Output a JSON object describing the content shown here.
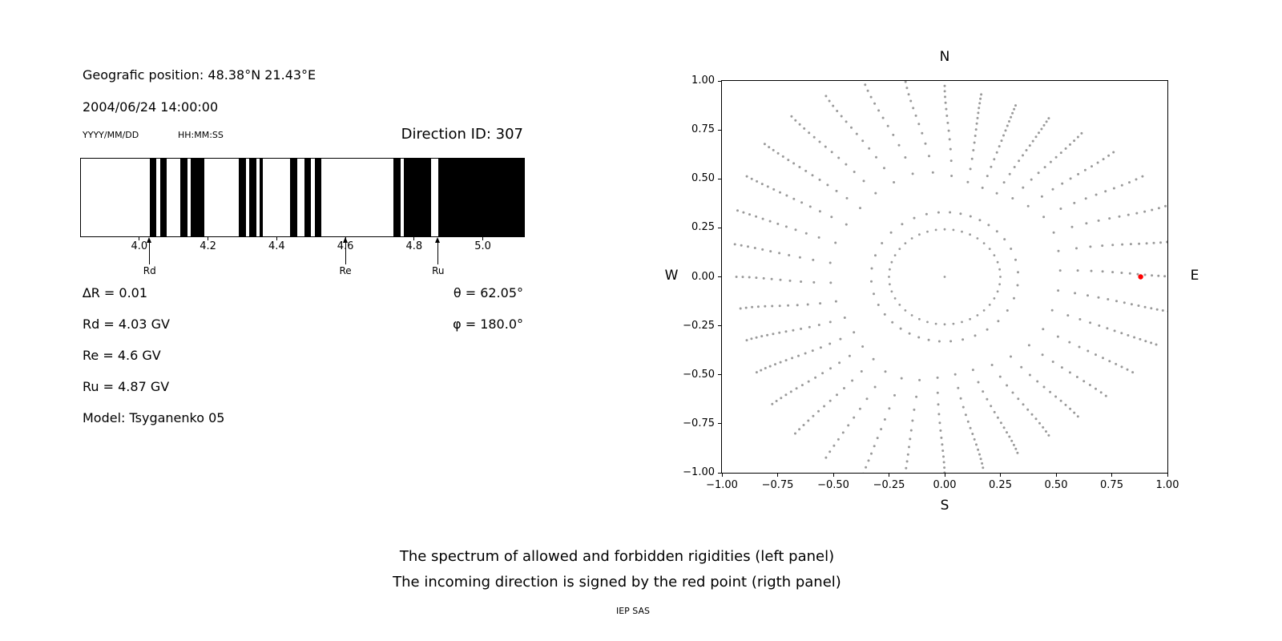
{
  "header": {
    "geographic_position": "Geografic position: 48.38°N 21.43°E",
    "datetime": "2004/06/24 14:00:00",
    "date_format": "YYYY/MM/DD",
    "time_format": "HH:MM:SS",
    "direction_id": "Direction ID: 307"
  },
  "parameters": {
    "delta_r": "∆R = 0.01",
    "rd": "Rd = 4.03 GV",
    "re": "Re = 4.6 GV",
    "ru": "Ru = 4.87 GV",
    "model": "Model: Tsyganenko 05",
    "theta": "θ = 62.05°",
    "phi": "φ = 180.0°"
  },
  "caption": {
    "line1": "The spectrum of allowed and forbidden rigidities (left panel)",
    "line2": "The incoming direction is signed by the red point (rigth panel)",
    "credit": "IEP SAS"
  },
  "chart_data": [
    {
      "type": "bar",
      "name": "rigidity_spectrum_barcode",
      "black_means": "allowed rigidity bands (white = forbidden)",
      "xlim": [
        3.83,
        5.12
      ],
      "xticks": [
        4.0,
        4.2,
        4.4,
        4.6,
        4.8,
        5.0
      ],
      "delta_r_gv": 0.01,
      "black_intervals": [
        [
          4.03,
          4.05
        ],
        [
          4.06,
          4.08
        ],
        [
          4.12,
          4.14
        ],
        [
          4.15,
          4.19
        ],
        [
          4.29,
          4.31
        ],
        [
          4.32,
          4.34
        ],
        [
          4.35,
          4.36
        ],
        [
          4.44,
          4.46
        ],
        [
          4.48,
          4.5
        ],
        [
          4.51,
          4.53
        ],
        [
          4.74,
          4.76
        ],
        [
          4.77,
          4.85
        ],
        [
          4.87,
          5.12
        ]
      ],
      "markers": [
        {
          "label": "Rd",
          "x": 4.03
        },
        {
          "label": "Re",
          "x": 4.6
        },
        {
          "label": "Ru",
          "x": 4.87
        }
      ]
    },
    {
      "type": "scatter",
      "name": "incoming_direction_map",
      "xlim": [
        -1.0,
        1.0
      ],
      "ylim": [
        -1.0,
        1.0
      ],
      "xticks": [
        -1.0,
        -0.75,
        -0.5,
        -0.25,
        0.0,
        0.25,
        0.5,
        0.75,
        1.0
      ],
      "yticks": [
        1.0,
        0.75,
        0.5,
        0.25,
        0.0,
        -0.25,
        -0.5,
        -0.75,
        -1.0
      ],
      "compass": {
        "top": "N",
        "bottom": "S",
        "left": "W",
        "right": "E"
      },
      "point_color": "#9a9a9a",
      "highlight_point": {
        "x": 0.88,
        "y": 0.0,
        "color": "#ff0000",
        "meaning": "incoming direction (red point)"
      },
      "pattern": {
        "description": "36 radial spokes of small gray dots (r ≈ 0.33–1.05, denser toward outer ends), a dotted ring at r ≈ 0.25, and a dot at the origin",
        "n_spokes": 36,
        "spoke_inner_r": 0.33,
        "spoke_outer_r": 1.0,
        "dots_per_spoke": 14,
        "ring_r": 0.25,
        "ring_dots": 40
      }
    }
  ]
}
